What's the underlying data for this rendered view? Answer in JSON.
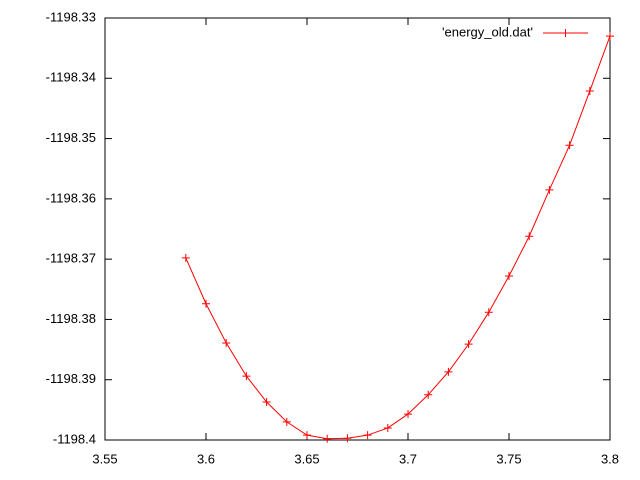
{
  "chart_data": {
    "type": "line",
    "x": [
      3.59,
      3.6,
      3.61,
      3.62,
      3.63,
      3.64,
      3.65,
      3.66,
      3.67,
      3.68,
      3.69,
      3.7,
      3.71,
      3.72,
      3.73,
      3.74,
      3.75,
      3.76,
      3.77,
      3.78,
      3.79,
      3.8
    ],
    "series": [
      {
        "name": "'energy_old.dat'",
        "color": "#ff0000",
        "values": [
          -1198.3698,
          -1198.3774,
          -1198.3839,
          -1198.3894,
          -1198.3937,
          -1198.397,
          -1198.3992,
          -1198.3998,
          -1198.3997,
          -1198.3992,
          -1198.398,
          -1198.3957,
          -1198.3925,
          -1198.3887,
          -1198.3841,
          -1198.3788,
          -1198.3728,
          -1198.3662,
          -1198.3585,
          -1198.3511,
          -1198.3421,
          -1198.333
        ]
      }
    ],
    "xlim": [
      3.55,
      3.8
    ],
    "xticks": [
      3.55,
      3.6,
      3.65,
      3.7,
      3.75,
      3.8
    ],
    "ylim": [
      -1198.4,
      -1198.33
    ],
    "yticks": [
      -1198.4,
      -1198.39,
      -1198.38,
      -1198.37,
      -1198.36,
      -1198.35,
      -1198.34,
      -1198.33
    ],
    "grid": false,
    "legend": "top-right"
  }
}
